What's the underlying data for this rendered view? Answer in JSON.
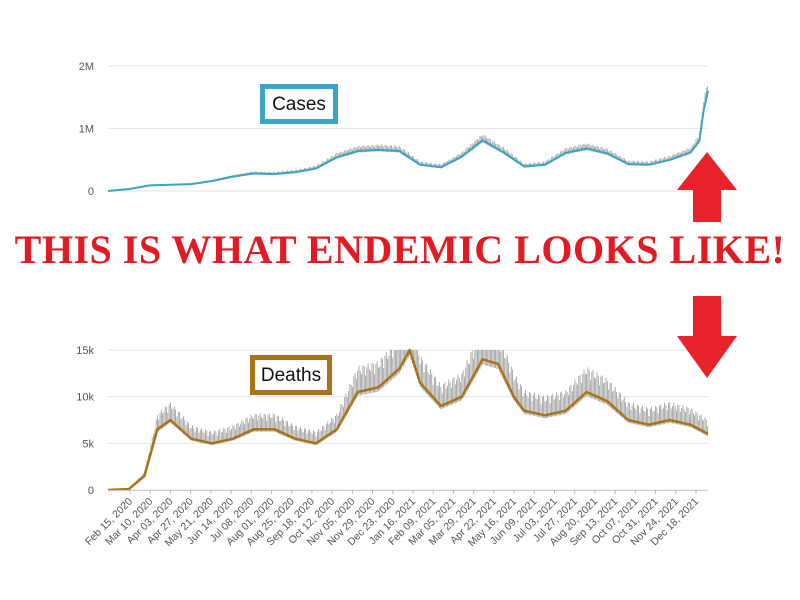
{
  "headline": "THIS IS WHAT ENDEMIC LOOKS LIKE!",
  "colors": {
    "headline": "#e01b24",
    "arrow": "#e8222a",
    "cases_line": "#3ba3c3",
    "deaths_line": "#a8741a",
    "daily_bars": "#9a9a9a",
    "grid": "#e6e6e6",
    "axis_text": "#555555"
  },
  "chart_data": [
    {
      "type": "line",
      "title": "",
      "label_box": "Cases",
      "xlabel": "",
      "ylabel": "",
      "ylim": [
        0,
        2000000
      ],
      "yticks": [
        0,
        1000000,
        2000000
      ],
      "yticklabels": [
        "0",
        "1M",
        "2M"
      ],
      "grid": true,
      "x_range": [
        "2020-02-15",
        "2022-01-07"
      ],
      "series": [
        {
          "x": [
            "2020-02-15",
            "2020-03-10",
            "2020-04-03",
            "2020-04-27",
            "2020-05-21",
            "2020-06-14",
            "2020-07-08",
            "2020-08-01",
            "2020-08-25",
            "2020-09-18",
            "2020-10-12",
            "2020-11-05",
            "2020-11-29",
            "2020-12-23",
            "2021-01-16",
            "2021-02-09",
            "2021-03-05",
            "2021-03-29",
            "2021-04-22",
            "2021-05-16",
            "2021-06-09",
            "2021-07-03",
            "2021-07-27",
            "2021-08-20",
            "2021-09-13",
            "2021-10-07",
            "2021-10-31",
            "2021-11-24",
            "2021-12-18",
            "2021-12-28",
            "2022-01-02",
            "2022-01-07"
          ],
          "values": [
            0,
            30000,
            90000,
            100000,
            110000,
            160000,
            230000,
            280000,
            270000,
            300000,
            360000,
            540000,
            640000,
            660000,
            640000,
            420000,
            380000,
            550000,
            810000,
            620000,
            390000,
            420000,
            610000,
            680000,
            600000,
            430000,
            420000,
            500000,
            620000,
            800000,
            1300000,
            1600000
          ]
        }
      ]
    },
    {
      "type": "line",
      "title": "",
      "label_box": "Deaths",
      "xlabel": "",
      "ylabel": "",
      "ylim": [
        0,
        15000
      ],
      "yticks": [
        0,
        5000,
        10000,
        15000
      ],
      "yticklabels": [
        "0",
        "5k",
        "10k",
        "15k"
      ],
      "grid": true,
      "x_range": [
        "2020-02-15",
        "2022-01-07"
      ],
      "xticklabels": [
        "Feb 15, 2020",
        "Mar 10, 2020",
        "Apr 03, 2020",
        "Apr 27, 2020",
        "May 21, 2020",
        "Jun 14, 2020",
        "Jul 08, 2020",
        "Aug 01, 2020",
        "Aug 25, 2020",
        "Sep 18, 2020",
        "Oct 12, 2020",
        "Nov 05, 2020",
        "Nov 29, 2020",
        "Dec 23, 2020",
        "Jan 16, 2021",
        "Feb 09, 2021",
        "Mar 05, 2021",
        "Mar 29, 2021",
        "Apr 22, 2021",
        "May 16, 2021",
        "Jun 09, 2021",
        "Jul 03, 2021",
        "Jul 27, 2021",
        "Aug 20, 2021",
        "Sep 13, 2021",
        "Oct 07, 2021",
        "Oct 31, 2021",
        "Nov 24, 2021",
        "Dec 18, 2021"
      ],
      "series": [
        {
          "x": [
            "2020-02-15",
            "2020-03-10",
            "2020-03-28",
            "2020-04-12",
            "2020-04-27",
            "2020-05-21",
            "2020-06-14",
            "2020-07-08",
            "2020-08-01",
            "2020-08-25",
            "2020-09-18",
            "2020-10-12",
            "2020-11-05",
            "2020-11-29",
            "2020-12-23",
            "2021-01-16",
            "2021-01-28",
            "2021-02-09",
            "2021-03-05",
            "2021-03-29",
            "2021-04-22",
            "2021-05-10",
            "2021-05-28",
            "2021-06-09",
            "2021-07-03",
            "2021-07-27",
            "2021-08-20",
            "2021-09-13",
            "2021-10-07",
            "2021-10-31",
            "2021-11-24",
            "2021-12-18",
            "2022-01-07"
          ],
          "values": [
            0,
            100,
            1500,
            6500,
            7500,
            5500,
            5000,
            5500,
            6500,
            6500,
            5500,
            5000,
            6500,
            10500,
            11000,
            13000,
            15000,
            11500,
            9000,
            10000,
            14000,
            13500,
            10000,
            8500,
            8000,
            8500,
            10500,
            9500,
            7500,
            7000,
            7500,
            7000,
            6000
          ]
        }
      ]
    }
  ]
}
